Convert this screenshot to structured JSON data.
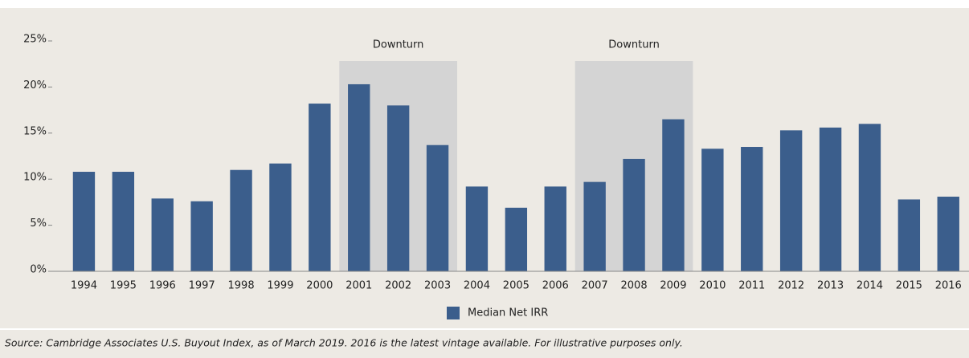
{
  "chart_data": {
    "type": "bar",
    "categories": [
      "1994",
      "1995",
      "1996",
      "1997",
      "1998",
      "1999",
      "2000",
      "2001",
      "2002",
      "2003",
      "2004",
      "2005",
      "2006",
      "2007",
      "2008",
      "2009",
      "2010",
      "2011",
      "2012",
      "2013",
      "2014",
      "2015",
      "2016"
    ],
    "series": [
      {
        "name": "Median Net IRR",
        "color": "#3b5e8c",
        "values": [
          10.8,
          10.8,
          7.9,
          7.6,
          11.0,
          11.7,
          18.2,
          20.3,
          18.0,
          13.7,
          9.2,
          6.9,
          9.2,
          9.7,
          12.2,
          16.5,
          13.3,
          13.5,
          15.3,
          15.6,
          16.0,
          7.8,
          8.1
        ]
      }
    ],
    "ylim": [
      0,
      25
    ],
    "yticks": [
      {
        "value": 0,
        "label": "0%"
      },
      {
        "value": 5,
        "label": "5%"
      },
      {
        "value": 10,
        "label": "10%"
      },
      {
        "value": 15,
        "label": "15%"
      },
      {
        "value": 20,
        "label": "20%"
      },
      {
        "value": 25,
        "label": "25%"
      }
    ],
    "shaded_regions": [
      {
        "label": "Downturn",
        "start": "2001",
        "end": "2003",
        "color": "#d4d4d4"
      },
      {
        "label": "Downturn",
        "start": "2007",
        "end": "2009",
        "color": "#d4d4d4"
      }
    ],
    "legend": "bottom",
    "source": "Source: Cambridge Associates U.S. Buyout Index, as of March 2019. 2016 is the latest vintage available. For illustrative purposes only."
  }
}
